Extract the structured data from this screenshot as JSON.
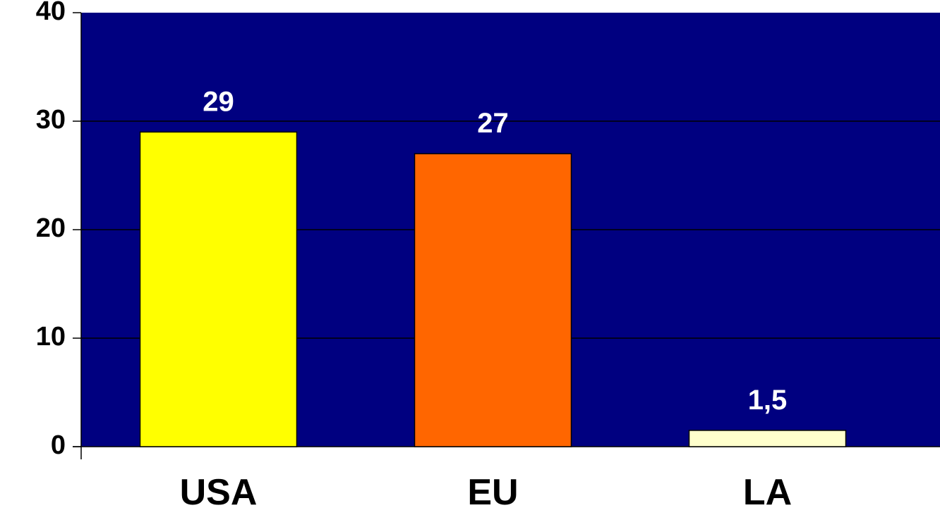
{
  "chart_data": {
    "type": "bar",
    "title": "",
    "xlabel": "",
    "ylabel": "",
    "categories": [
      "USA",
      "EU",
      "LA"
    ],
    "values": [
      29,
      27,
      1.5
    ],
    "value_labels": [
      "29",
      "27",
      "1,5"
    ],
    "ylim": [
      0,
      40
    ],
    "yticks": [
      0,
      10,
      20,
      30,
      40
    ],
    "ytick_labels": [
      "0",
      "10",
      "20",
      "30",
      "40"
    ],
    "grid": true,
    "legend": "none",
    "colors": {
      "plot_background": "#000080",
      "gridline": "#000000",
      "bars": [
        "#ffff00",
        "#ff6600",
        "#ffffcc"
      ],
      "value_label": "#ffffff",
      "axis_text": "#000000"
    }
  }
}
